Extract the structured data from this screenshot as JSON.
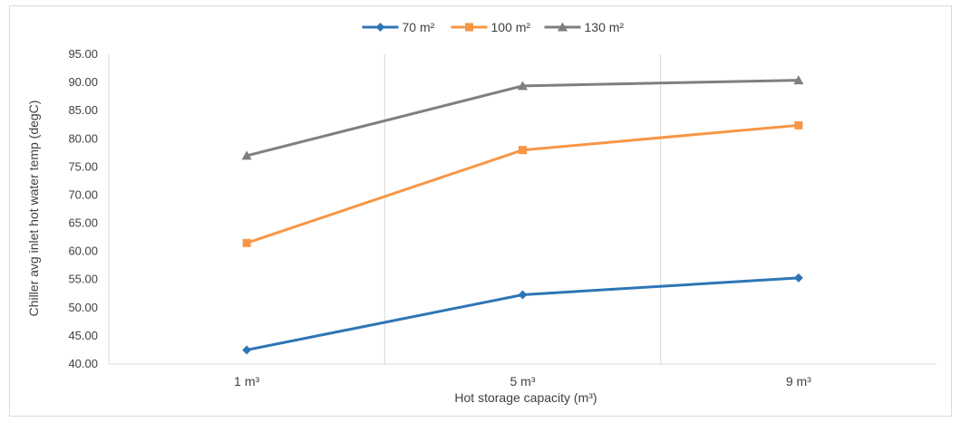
{
  "chart_data": {
    "type": "line",
    "title": "",
    "xlabel": "Hot storage capacity (m³)",
    "ylabel": "Chiller avg inlet hot water temp (degC)",
    "categories": [
      "1 m³",
      "5 m³",
      "9 m³"
    ],
    "ylim": [
      40,
      95
    ],
    "ytick_step": 5,
    "ytick_labels": [
      "40.00",
      "45.00",
      "50.00",
      "55.00",
      "60.00",
      "65.00",
      "70.00",
      "75.00",
      "80.00",
      "85.00",
      "90.00",
      "95.00"
    ],
    "horizontal_grid": false,
    "vertical_grid": true,
    "legend_position": "top",
    "series": [
      {
        "name": "70 m²",
        "values": [
          42.5,
          52.3,
          55.3
        ],
        "color": "#2e75b6",
        "marker": "diamond"
      },
      {
        "name": "100 m²",
        "values": [
          61.5,
          78.0,
          82.4
        ],
        "color": "#f79646",
        "marker": "square"
      },
      {
        "name": "130 m²",
        "values": [
          77.0,
          89.4,
          90.4
        ],
        "color": "#7f7f7f",
        "marker": "triangle"
      }
    ]
  }
}
